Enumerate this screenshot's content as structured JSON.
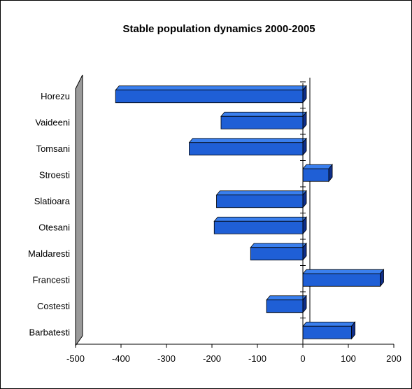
{
  "chart_data": {
    "type": "bar",
    "orientation": "horizontal",
    "title": "Stable population dynamics 2000-2005",
    "categories": [
      "Horezu",
      "Vaideeni",
      "Tomsani",
      "Stroesti",
      "Slatioara",
      "Otesani",
      "Maldaresti",
      "Francesti",
      "Costesti",
      "Barbatesti"
    ],
    "values": [
      -412,
      -180,
      -250,
      57,
      -190,
      -195,
      -115,
      170,
      -80,
      107
    ],
    "xlim": [
      -500,
      200
    ],
    "xticks": [
      -500,
      -400,
      -300,
      -200,
      -100,
      0,
      100,
      200
    ],
    "style": "3d",
    "grid": false,
    "legend": "none",
    "colors": {
      "bar_front": "#1f5fd6",
      "bar_top": "#3a7fee",
      "bar_side": "#0f2f8a",
      "side_wall": "#9a9a9a",
      "axis": "#000000"
    }
  }
}
